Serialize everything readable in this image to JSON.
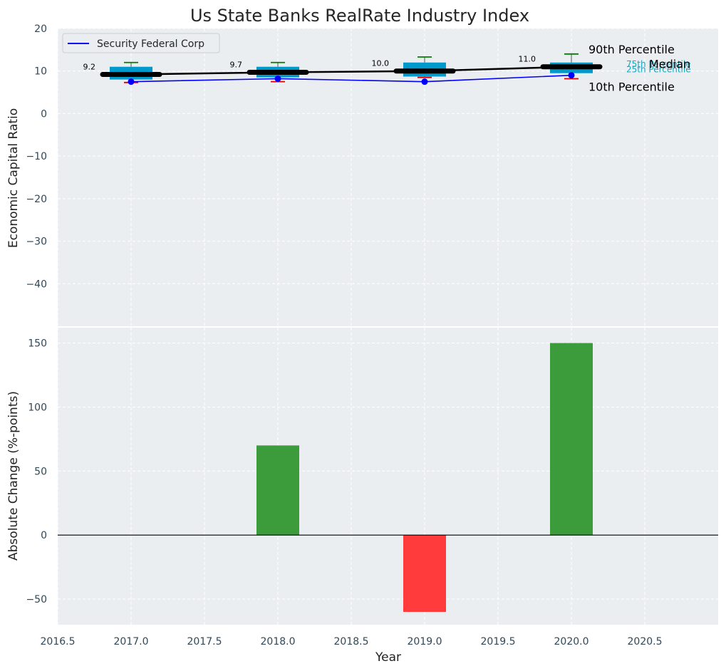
{
  "chart_data": {
    "title": "Us State Banks RealRate Industry Index",
    "xlabel": "Year",
    "xlim": [
      2016.5,
      2021.0
    ],
    "xticks": [
      "2016.5",
      "2017.0",
      "2017.5",
      "2018.0",
      "2018.5",
      "2019.0",
      "2019.5",
      "2020.0",
      "2020.5"
    ],
    "top": {
      "type": "box+line",
      "ylabel": "Economic Capital Ratio",
      "ylim": [
        -50,
        20
      ],
      "yticks": [
        20,
        10,
        0,
        -10,
        -20,
        -30,
        -40
      ],
      "ytick_labels": [
        "20",
        "10",
        "0",
        "−10",
        "−20",
        "−30",
        "−40"
      ],
      "boxes": [
        {
          "year": 2017,
          "p10": 7.3,
          "p25": 8.0,
          "median": 9.2,
          "p75": 11.0,
          "p90": 12.0
        },
        {
          "year": 2018,
          "p10": 7.5,
          "p25": 8.5,
          "median": 9.7,
          "p75": 11.0,
          "p90": 12.0
        },
        {
          "year": 2019,
          "p10": 8.5,
          "p25": 8.7,
          "median": 10.0,
          "p75": 12.0,
          "p90": 13.3
        },
        {
          "year": 2020,
          "p10": 8.2,
          "p25": 9.5,
          "median": 11.0,
          "p75": 12.0,
          "p90": 14.0
        }
      ],
      "median_labels": [
        "9.2",
        "9.7",
        "10.0",
        "11.0"
      ],
      "series": [
        {
          "name": "Security Federal Corp",
          "x": [
            2017,
            2018,
            2019,
            2020
          ],
          "values": [
            7.5,
            8.2,
            7.5,
            9.0
          ],
          "color": "#0000ff"
        }
      ],
      "median_line_color": "#000000",
      "annotations": {
        "p90": "90th Percentile",
        "median": "Median",
        "p10": "10th Percentile",
        "p75": "75th Percentile",
        "p25": "25th Percentile"
      },
      "legend_position": "upper-left"
    },
    "bottom": {
      "type": "bar",
      "ylabel": "Absolute Change (%-points)",
      "ylim": [
        -70,
        162
      ],
      "yticks": [
        150,
        100,
        50,
        0,
        -50
      ],
      "ytick_labels": [
        "150",
        "100",
        "50",
        "0",
        "−50"
      ],
      "x": [
        2017,
        2018,
        2019,
        2020
      ],
      "values": [
        0,
        70,
        -60,
        150
      ],
      "positive_color": "#3c9c3c",
      "negative_color": "#ff3b3b"
    },
    "colors": {
      "plot_bg": "#eaeef0",
      "box_fill": "#0099cc",
      "whisker_top": "#008000",
      "whisker_bottom": "#dd0000",
      "tick_text": "#2f4858",
      "label_text": "#222222",
      "annot_cyan": "#1aa3bf"
    }
  }
}
